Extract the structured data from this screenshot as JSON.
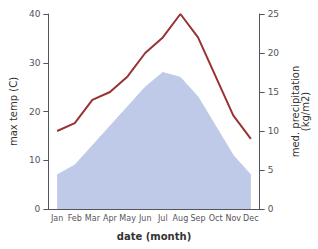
{
  "chart_data": {
    "type": "line",
    "xlabel": "date (month)",
    "ylabel": "max temp (C)",
    "y2label": "med. precipitation\n(kg/m2)",
    "categories": [
      "Jan",
      "Feb",
      "Mar",
      "Apr",
      "May",
      "Jun",
      "Jul",
      "Aug",
      "Sep",
      "Oct",
      "Nov",
      "Dec"
    ],
    "series": [
      {
        "type": "area",
        "color": "#bfc9e8",
        "values": [
          7,
          9,
          13,
          17,
          21,
          25,
          28,
          27,
          23,
          17,
          11,
          7
        ]
      },
      {
        "type": "line",
        "color": "#993333",
        "axis": "y2",
        "values": [
          10,
          11,
          14,
          15,
          17,
          20,
          22,
          25,
          22,
          17,
          12,
          9
        ]
      }
    ],
    "ylim": [
      0,
      40
    ],
    "yticks": [
      0,
      10,
      20,
      30,
      40
    ],
    "y2lim": [
      0,
      25
    ],
    "y2ticks": [
      0,
      5,
      10,
      15,
      20,
      25
    ],
    "grid": false
  }
}
